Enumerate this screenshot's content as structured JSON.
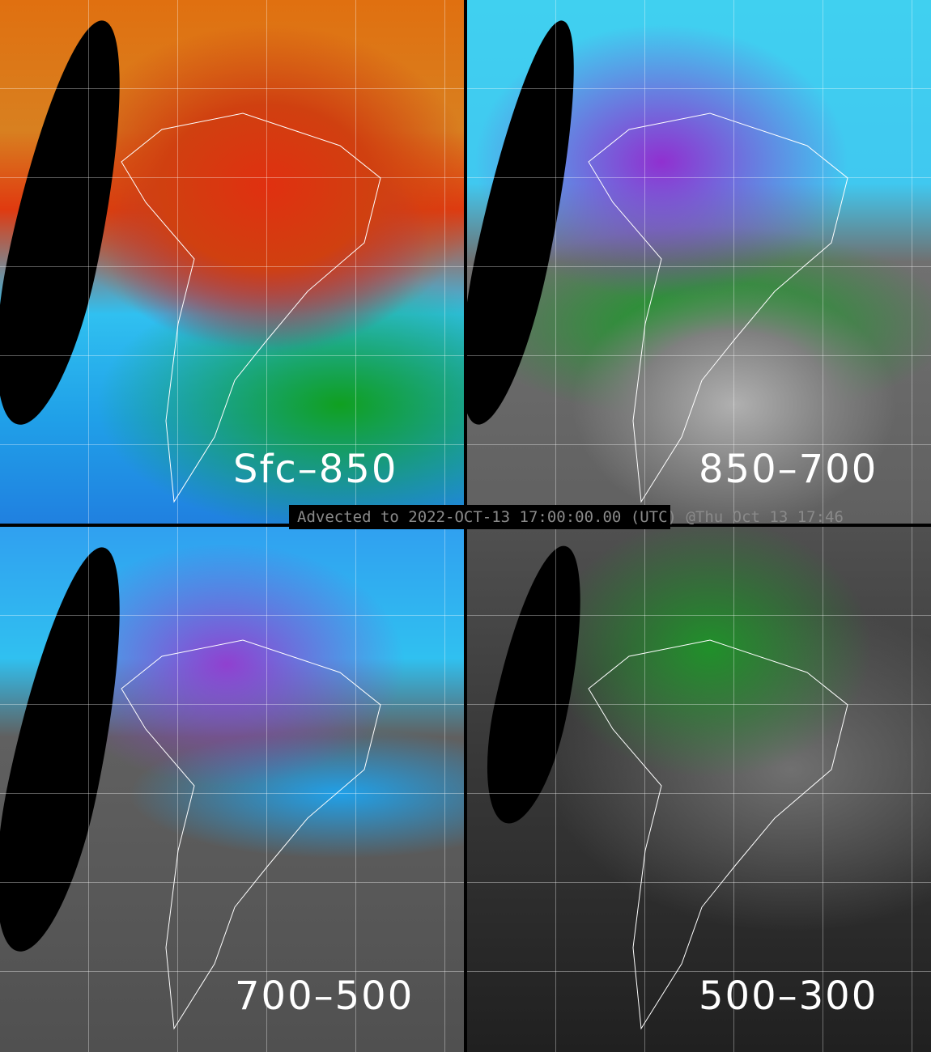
{
  "panels": [
    {
      "label": "Sfc–850"
    },
    {
      "label": "850–700"
    },
    {
      "label": "700–500"
    },
    {
      "label": "500–300"
    }
  ],
  "banner": {
    "text": "Advected to 2022-OCT-13 17:00:00.00 (UTC) @Thu Oct 13 17:46"
  }
}
